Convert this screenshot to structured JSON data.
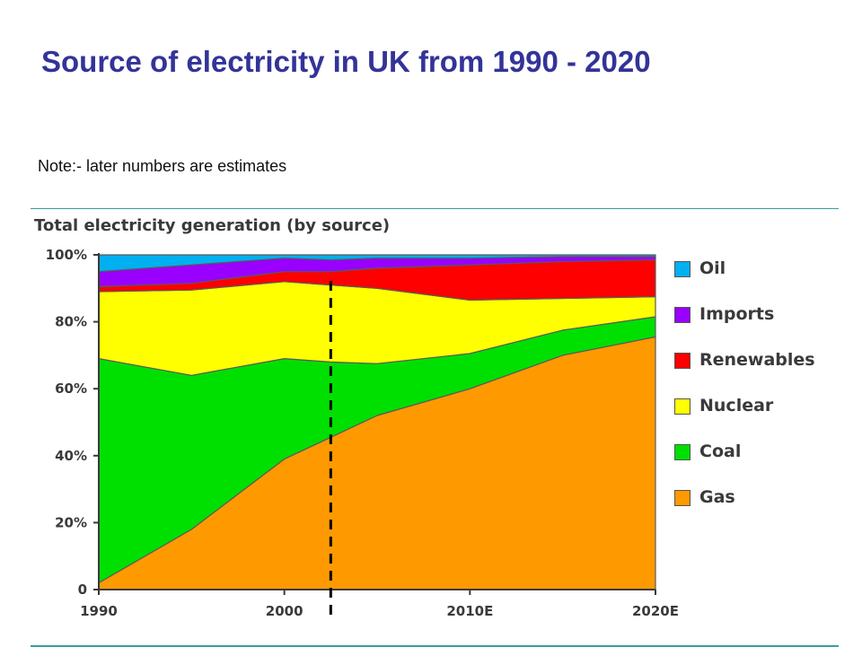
{
  "slide": {
    "title": "Source of electricity in UK from 1990 - 2020",
    "note": "Note:- later numbers are estimates"
  },
  "chart_data": {
    "type": "area",
    "stacked": true,
    "title": "Total electricity generation (by source)",
    "x": [
      1990,
      1995,
      2000,
      2002.5,
      2005,
      2010,
      2015,
      2020
    ],
    "x_tick_labels": [
      "1990",
      "2000",
      "2010E",
      "2020E"
    ],
    "x_tick_values": [
      1990,
      2000,
      2010,
      2020
    ],
    "y_tick_labels": [
      "0",
      "20%",
      "40%",
      "60%",
      "80%",
      "100%"
    ],
    "y_tick_values": [
      0,
      20,
      40,
      60,
      80,
      100
    ],
    "ylim": [
      0,
      100
    ],
    "xlim": [
      1990,
      2020
    ],
    "grid": false,
    "legend_position": "right",
    "projection_marker_x": 2002.5,
    "series": [
      {
        "name": "Gas",
        "color": "#ff9900",
        "values": [
          2,
          18,
          39,
          45.5,
          52,
          60,
          70,
          75.5
        ]
      },
      {
        "name": "Coal",
        "color": "#00e000",
        "values": [
          67,
          46,
          30,
          22.5,
          15.5,
          10.5,
          7.5,
          6
        ]
      },
      {
        "name": "Nuclear",
        "color": "#ffff00",
        "values": [
          20,
          25.5,
          23,
          23,
          22.5,
          16,
          9.5,
          6
        ]
      },
      {
        "name": "Renewables",
        "color": "#ff0000",
        "values": [
          1.5,
          2,
          3,
          4,
          6,
          10.5,
          11,
          11
        ]
      },
      {
        "name": "Imports",
        "color": "#9900ff",
        "values": [
          4.5,
          5.5,
          4,
          3.5,
          3,
          2,
          1.5,
          1
        ]
      },
      {
        "name": "Oil",
        "color": "#00b0f0",
        "values": [
          5,
          3,
          1,
          1.5,
          1,
          1,
          0.5,
          0.5
        ]
      }
    ],
    "legend_order": [
      "Oil",
      "Imports",
      "Renewables",
      "Nuclear",
      "Coal",
      "Gas"
    ]
  }
}
